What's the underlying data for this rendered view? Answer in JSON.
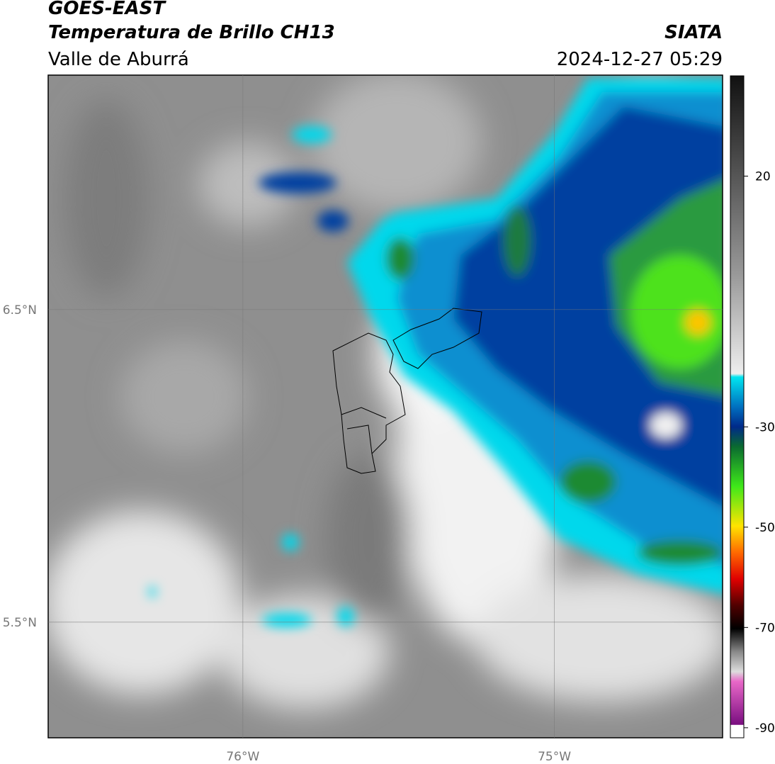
{
  "header": {
    "title": "GOES-EAST",
    "subtitle": "Temperatura de Brillo CH13",
    "source": "SIATA",
    "region": "Valle de Aburrá",
    "timestamp": "2024-12-27 05:29"
  },
  "map": {
    "xlim": [
      -76.625,
      -74.46
    ],
    "ylim": [
      5.13,
      7.25
    ],
    "xticks": [
      {
        "value": -76,
        "label": "76°W"
      },
      {
        "value": -75,
        "label": "75°W"
      }
    ],
    "yticks": [
      {
        "value": 6.5,
        "label": "6.5°N"
      },
      {
        "value": 5.5,
        "label": "5.5°N"
      }
    ],
    "grid": true
  },
  "colorbar": {
    "lim": [
      -92,
      40
    ],
    "ticks": [
      20,
      -30,
      -50,
      -70,
      -90
    ]
  }
}
